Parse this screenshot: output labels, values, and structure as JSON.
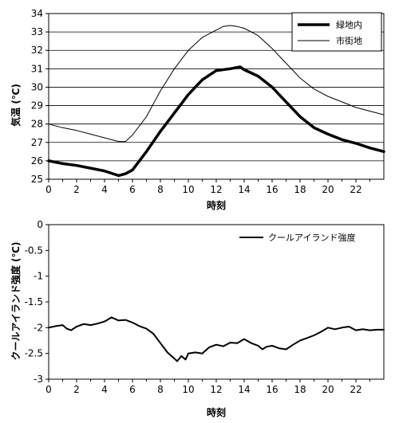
{
  "chart_data": [
    {
      "type": "line",
      "xlabel": "時刻",
      "ylabel": "気温 (℃)",
      "xlim": [
        0,
        24
      ],
      "ylim": [
        25,
        34
      ],
      "xticks": [
        "0",
        "2",
        "4",
        "6",
        "8",
        "10",
        "12",
        "14",
        "16",
        "18",
        "20",
        "22"
      ],
      "yticks": [
        "25",
        "26",
        "27",
        "28",
        "29",
        "30",
        "31",
        "32",
        "33",
        "34"
      ],
      "grid": true,
      "legend_position": "top-right",
      "series": [
        {
          "name": "緑地内",
          "style": "thick",
          "x": [
            0,
            1,
            2,
            3,
            4,
            5,
            5.5,
            6,
            7,
            8,
            9,
            10,
            11,
            12,
            13,
            13.7,
            14,
            15,
            16,
            17,
            18,
            19,
            20,
            21,
            22,
            23,
            24
          ],
          "y": [
            26.0,
            25.85,
            25.75,
            25.6,
            25.45,
            25.2,
            25.3,
            25.5,
            26.5,
            27.6,
            28.6,
            29.6,
            30.4,
            30.9,
            31.0,
            31.1,
            30.95,
            30.6,
            30.0,
            29.2,
            28.4,
            27.8,
            27.45,
            27.15,
            26.95,
            26.7,
            26.5
          ]
        },
        {
          "name": "市街地",
          "style": "thin",
          "x": [
            0,
            1,
            2,
            3,
            4,
            5,
            5.5,
            6,
            7,
            8,
            9,
            10,
            11,
            12,
            12.5,
            13,
            13.5,
            14,
            15,
            16,
            17,
            18,
            19,
            20,
            21,
            22,
            23,
            24
          ],
          "y": [
            28.0,
            27.8,
            27.65,
            27.45,
            27.25,
            27.05,
            27.05,
            27.4,
            28.4,
            29.8,
            31.0,
            32.0,
            32.7,
            33.1,
            33.3,
            33.35,
            33.3,
            33.2,
            32.8,
            32.1,
            31.3,
            30.5,
            29.9,
            29.5,
            29.2,
            28.9,
            28.7,
            28.5
          ]
        }
      ]
    },
    {
      "type": "line",
      "xlabel": "時刻",
      "ylabel": "クールアイランド強度 (℃)",
      "xlim": [
        0,
        24
      ],
      "ylim": [
        -3,
        0
      ],
      "xticks": [
        "0",
        "2",
        "4",
        "6",
        "8",
        "10",
        "12",
        "14",
        "16",
        "18",
        "20",
        "22"
      ],
      "yticks": [
        "-3",
        "-2.5",
        "-2",
        "-1.5",
        "-1",
        "-0.5",
        "0"
      ],
      "grid": false,
      "legend_position": "top-right",
      "series": [
        {
          "name": "クールアイランド強度",
          "style": "medium",
          "x": [
            0,
            0.5,
            1,
            1.3,
            1.6,
            2,
            2.5,
            3,
            3.5,
            4,
            4.5,
            5,
            5.5,
            6,
            6.5,
            7,
            7.5,
            8,
            8.5,
            9,
            9.2,
            9.5,
            9.8,
            10,
            10.5,
            11,
            11.5,
            12,
            12.5,
            13,
            13.5,
            14,
            14.5,
            15,
            15.3,
            15.6,
            16,
            16.5,
            17,
            17.5,
            18,
            18.5,
            19,
            19.5,
            20,
            20.5,
            21,
            21.5,
            22,
            22.5,
            23,
            23.5,
            24
          ],
          "y": [
            -2.0,
            -1.97,
            -1.95,
            -2.02,
            -2.05,
            -1.98,
            -1.93,
            -1.95,
            -1.92,
            -1.88,
            -1.8,
            -1.86,
            -1.85,
            -1.9,
            -1.97,
            -2.02,
            -2.12,
            -2.3,
            -2.48,
            -2.6,
            -2.65,
            -2.55,
            -2.62,
            -2.5,
            -2.48,
            -2.5,
            -2.38,
            -2.33,
            -2.36,
            -2.29,
            -2.3,
            -2.22,
            -2.3,
            -2.35,
            -2.42,
            -2.37,
            -2.35,
            -2.4,
            -2.42,
            -2.33,
            -2.25,
            -2.2,
            -2.15,
            -2.08,
            -2.0,
            -2.03,
            -2.0,
            -1.98,
            -2.05,
            -2.03,
            -2.05,
            -2.04,
            -2.04
          ]
        }
      ]
    }
  ]
}
